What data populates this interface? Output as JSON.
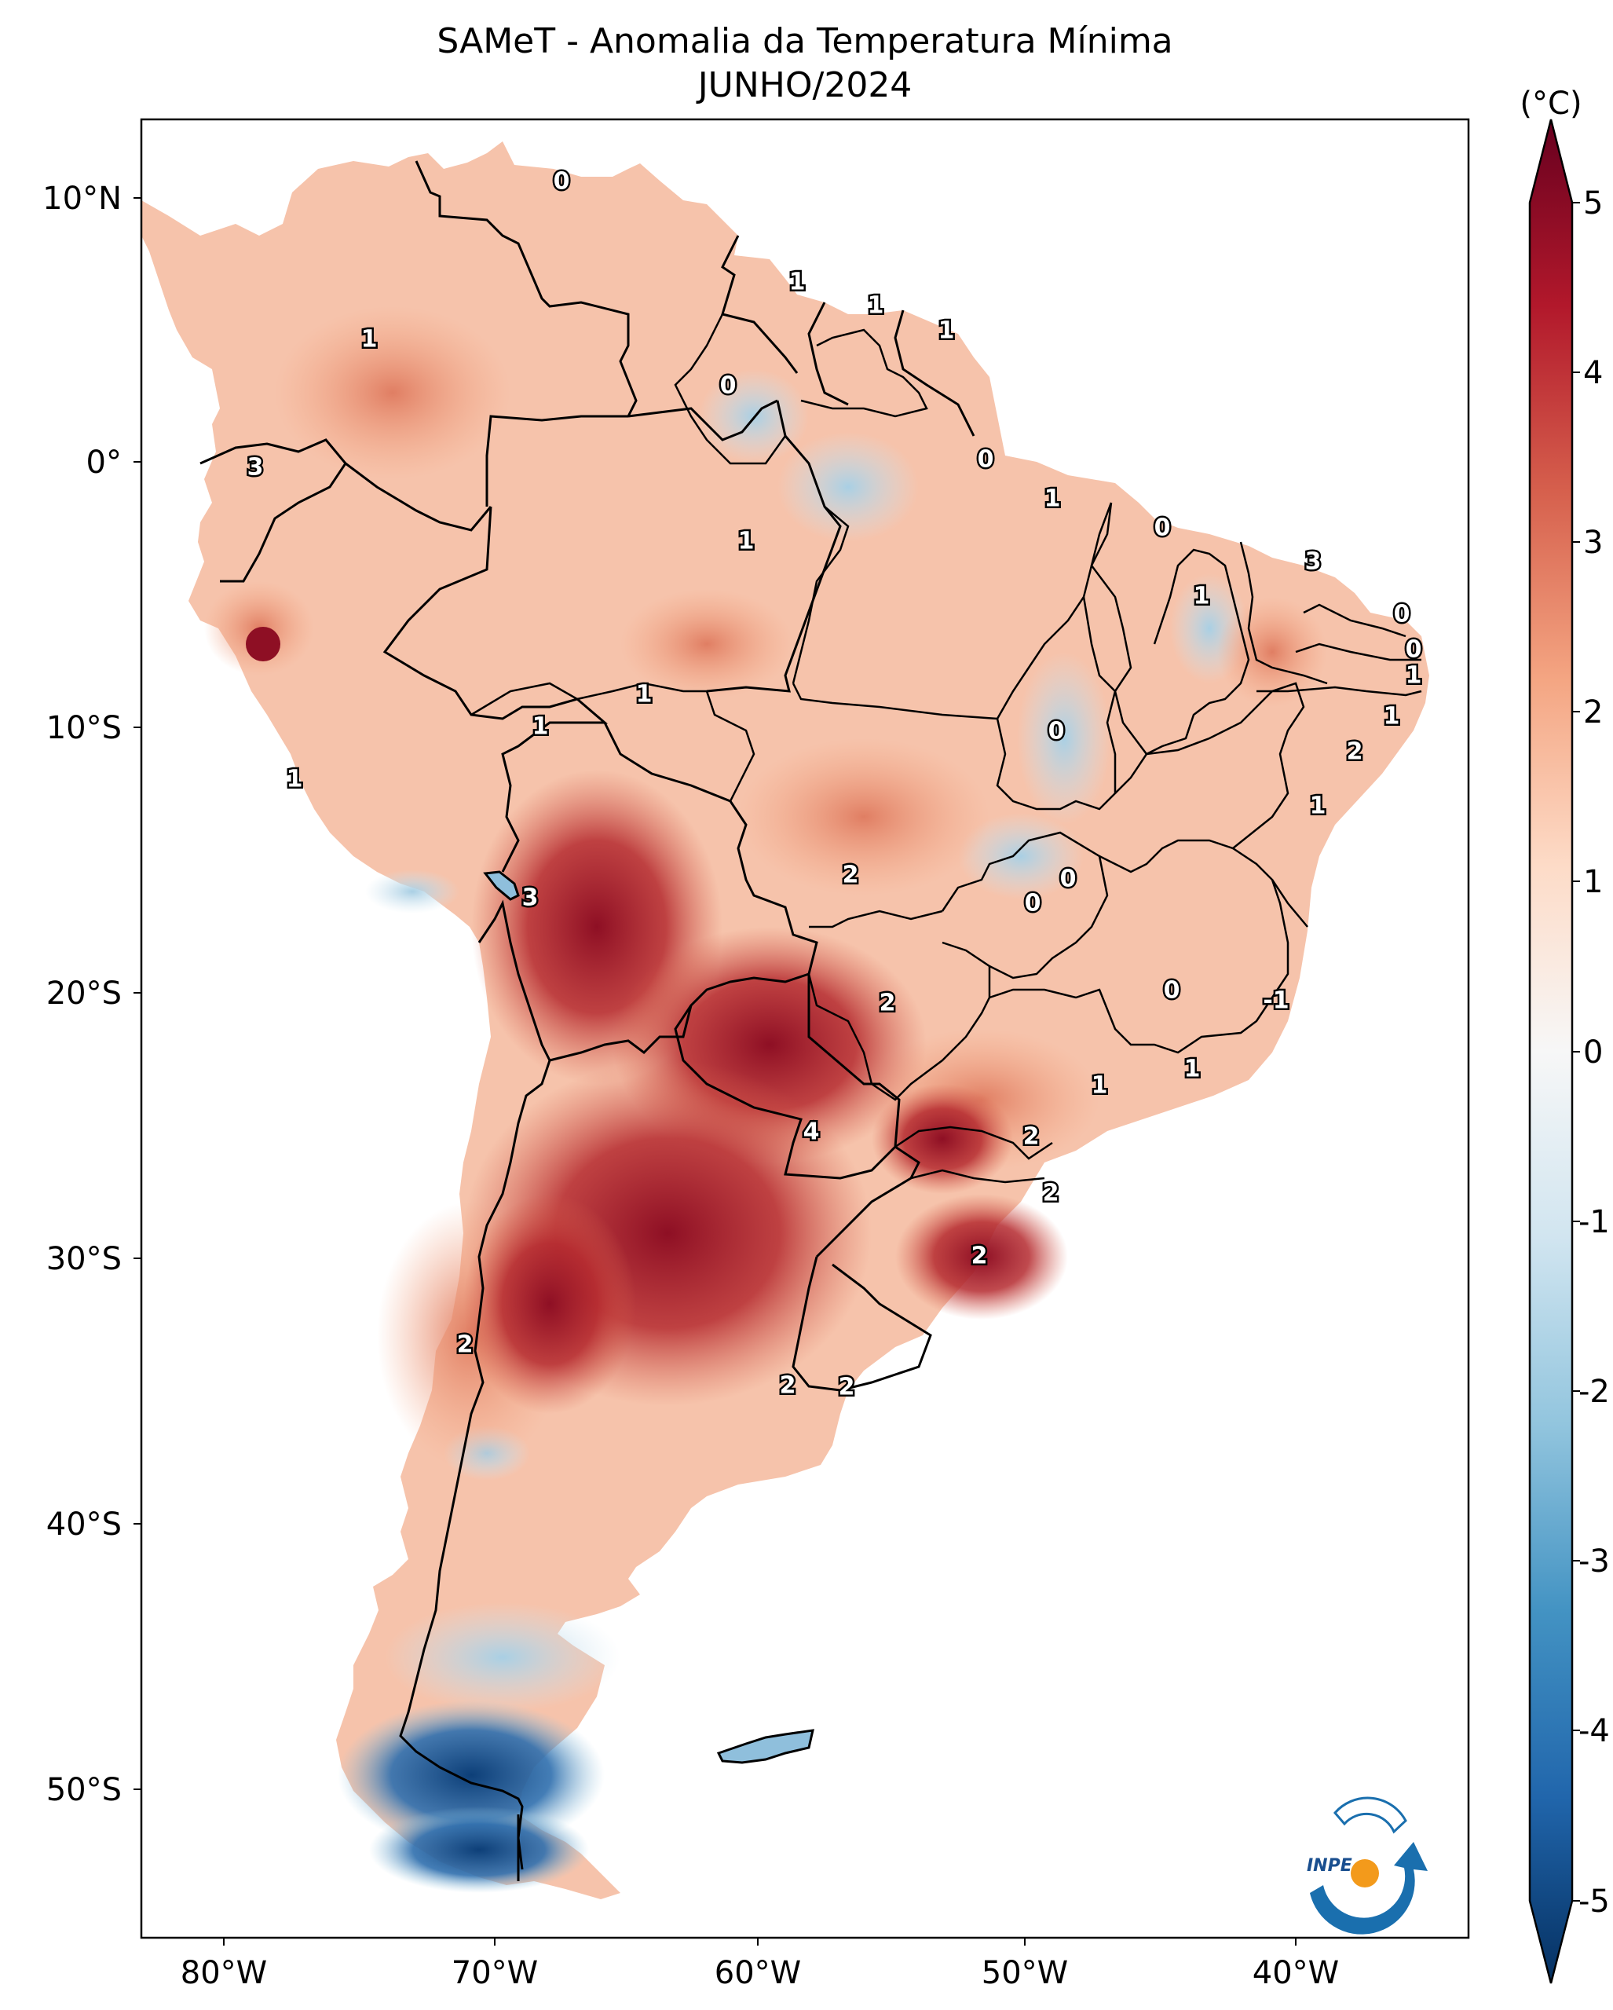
{
  "map": {
    "title_line1": "SAMeT - Anomalia da Temperatura Mínima",
    "title_line2": "JUNHO/2024",
    "variable": "Anomalia da Temperatura Mínima",
    "period": "JUNHO/2024",
    "region": "South America",
    "lon_ticks": [
      "80°W",
      "70°W",
      "60°W",
      "50°W",
      "40°W"
    ],
    "lat_ticks": [
      "10°N",
      "0°",
      "10°S",
      "20°S",
      "30°S",
      "40°S",
      "50°S"
    ],
    "colorbar": {
      "unit": "(°C)",
      "ticks": [
        "5",
        "4",
        "3",
        "2",
        "1",
        "0",
        "-1",
        "-2",
        "-3",
        "-4",
        "-5"
      ],
      "min": -5,
      "max": 5,
      "colors": [
        "#053061",
        "#2166ac",
        "#4393c3",
        "#92c5de",
        "#d1e5f0",
        "#f7f7f7",
        "#fddbc7",
        "#f4a582",
        "#d6604d",
        "#b2182b",
        "#67001f"
      ]
    },
    "contour_labels": [
      "0",
      "1",
      "1",
      "1",
      "1",
      "0",
      "0",
      "1",
      "3",
      "1",
      "0",
      "1",
      "3",
      "0",
      "0",
      "1",
      "1",
      "1",
      "1",
      "0",
      "2",
      "1",
      "1",
      "0",
      "0",
      "3",
      "2",
      "2",
      "0",
      "-1",
      "1",
      "1",
      "2",
      "4",
      "2",
      "2",
      "2",
      "2",
      "2"
    ],
    "logo_text": "INPE"
  }
}
